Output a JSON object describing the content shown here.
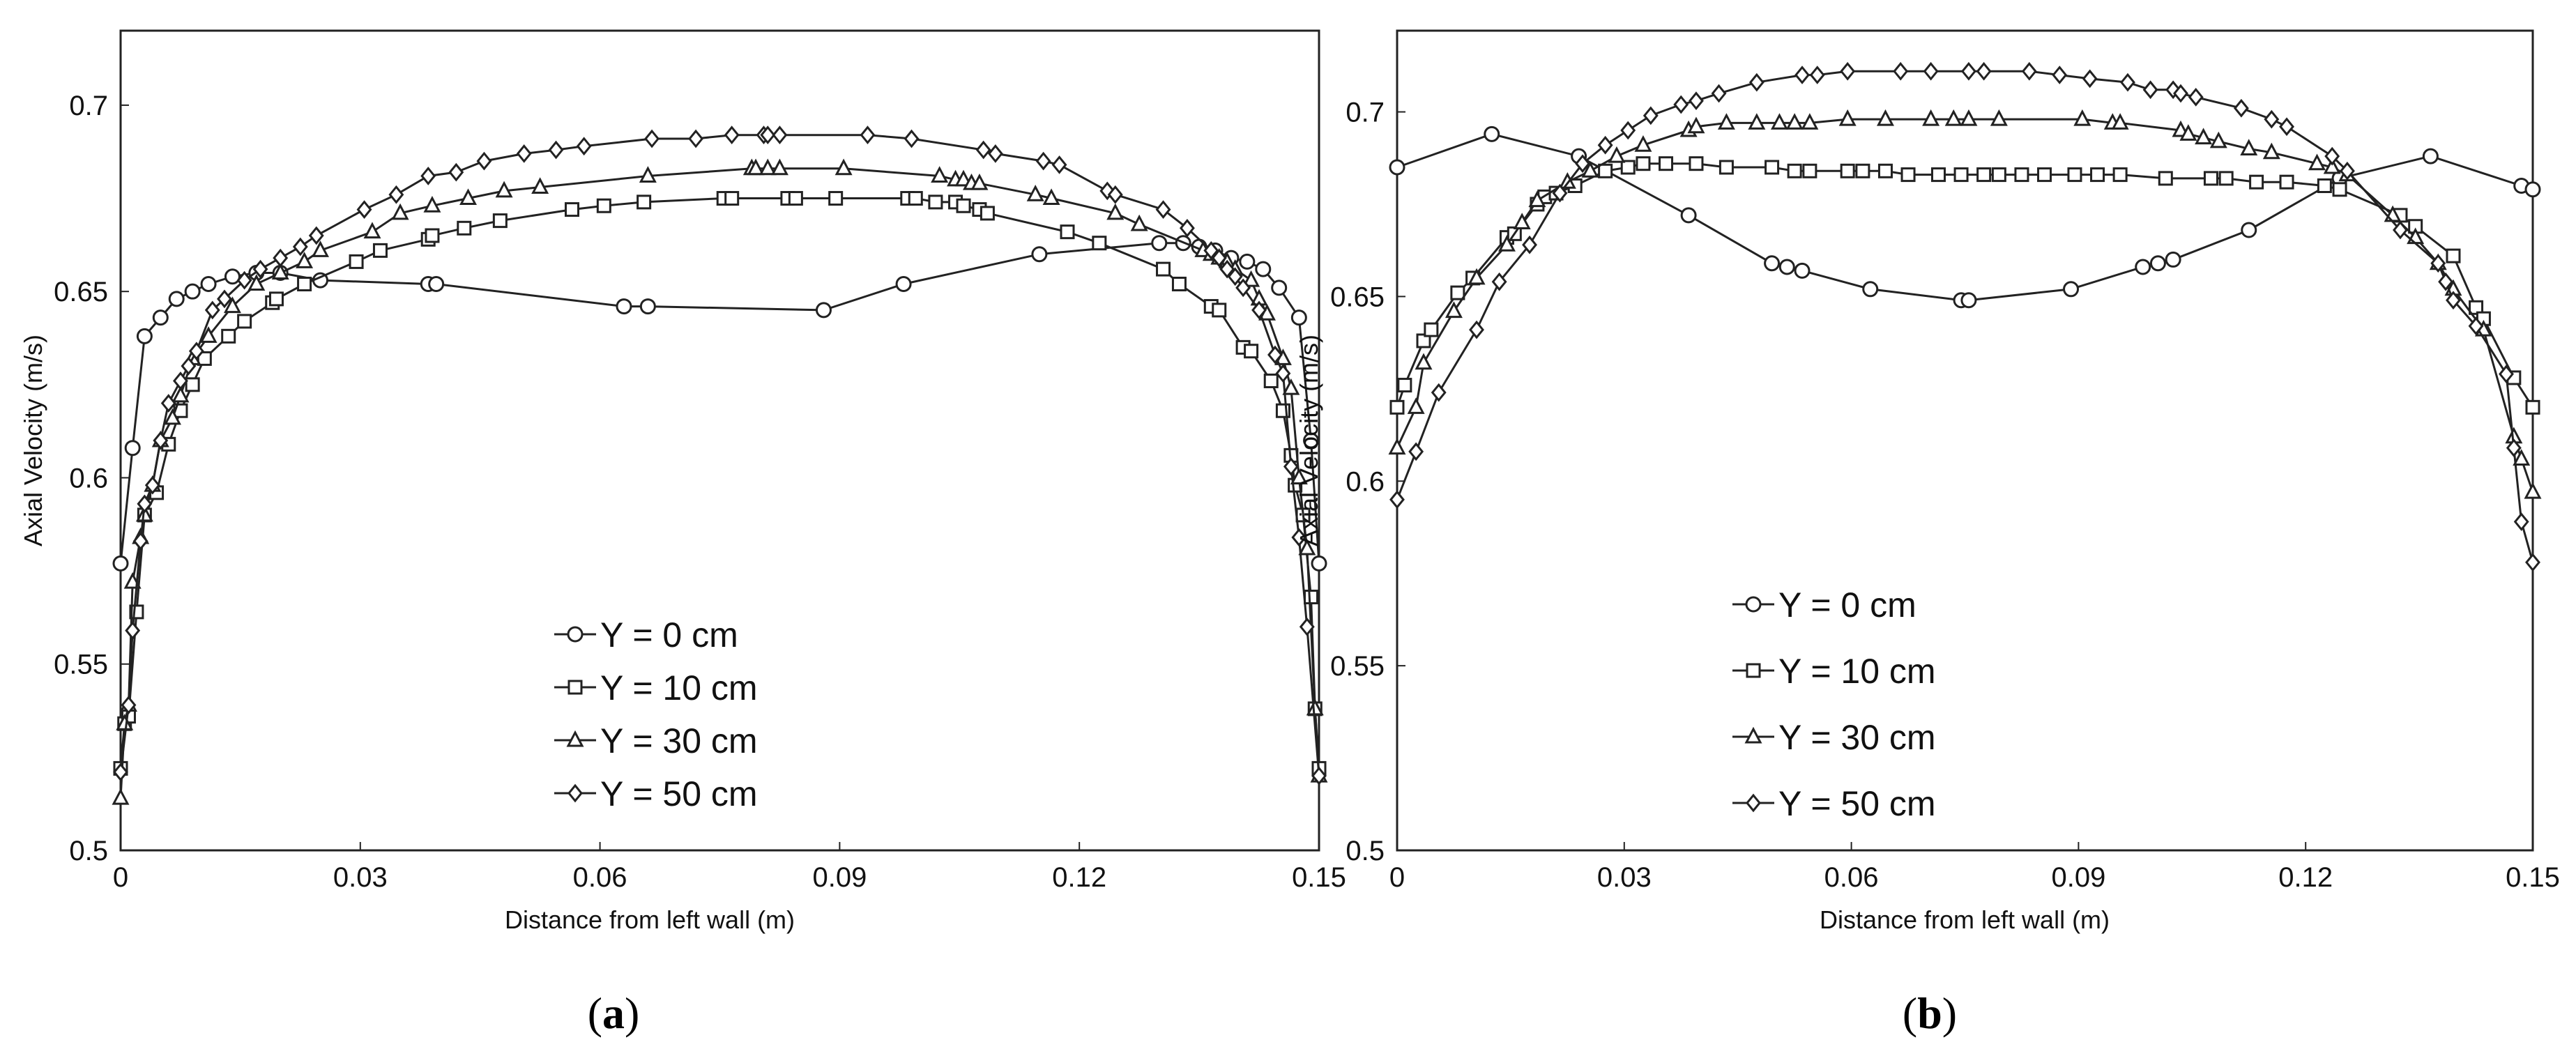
{
  "chart_data": [
    {
      "type": "line",
      "panel_label": "a",
      "xlabel": "Distance from left wall (m)",
      "ylabel": "Axial Velocity (m/s)",
      "xlim": [
        0,
        0.15
      ],
      "ylim": [
        0.5,
        0.72
      ],
      "xticks": [
        0,
        0.03,
        0.06,
        0.09,
        0.12,
        0.15
      ],
      "xtick_labels": [
        "0",
        "0.03",
        "0.06",
        "0.09",
        "0.12",
        "0.15"
      ],
      "yticks": [
        0.5,
        0.55,
        0.6,
        0.65,
        0.7
      ],
      "ytick_labels": [
        "0.5",
        "0.55",
        "0.6",
        "0.65",
        "0.7"
      ],
      "legend_position": "bottom-center",
      "series": [
        {
          "name": "Y = 0 cm",
          "marker": "circle",
          "x": [
            0,
            0.0015,
            0.003,
            0.005,
            0.007,
            0.009,
            0.011,
            0.014,
            0.017,
            0.02,
            0.025,
            0.0385,
            0.0395,
            0.063,
            0.066,
            0.088,
            0.098,
            0.115,
            0.13,
            0.133,
            0.135,
            0.137,
            0.139,
            0.141,
            0.143,
            0.145,
            0.1475,
            0.149,
            0.15
          ],
          "values": [
            0.577,
            0.608,
            0.638,
            0.643,
            0.648,
            0.65,
            0.652,
            0.654,
            0.655,
            0.655,
            0.653,
            0.652,
            0.652,
            0.646,
            0.646,
            0.645,
            0.652,
            0.66,
            0.663,
            0.663,
            0.662,
            0.661,
            0.659,
            0.658,
            0.656,
            0.651,
            0.643,
            0.61,
            0.577
          ]
        },
        {
          "name": "Y = 10 cm",
          "marker": "square",
          "x": [
            0,
            0.0005,
            0.001,
            0.002,
            0.003,
            0.0045,
            0.006,
            0.0075,
            0.009,
            0.0105,
            0.0135,
            0.0155,
            0.019,
            0.0195,
            0.023,
            0.0295,
            0.0325,
            0.0385,
            0.039,
            0.043,
            0.0475,
            0.0565,
            0.0605,
            0.0655,
            0.0755,
            0.0765,
            0.0835,
            0.0845,
            0.0895,
            0.0985,
            0.0995,
            0.102,
            0.1045,
            0.1055,
            0.1075,
            0.1085,
            0.1185,
            0.1225,
            0.1305,
            0.1325,
            0.1365,
            0.1375,
            0.1405,
            0.1415,
            0.144,
            0.1455,
            0.1465,
            0.147,
            0.148,
            0.149,
            0.1495,
            0.15
          ],
          "values": [
            0.522,
            0.534,
            0.536,
            0.564,
            0.59,
            0.596,
            0.609,
            0.618,
            0.625,
            0.632,
            0.638,
            0.642,
            0.647,
            0.648,
            0.652,
            0.658,
            0.661,
            0.664,
            0.665,
            0.667,
            0.669,
            0.672,
            0.673,
            0.674,
            0.675,
            0.675,
            0.675,
            0.675,
            0.675,
            0.675,
            0.675,
            0.674,
            0.674,
            0.673,
            0.672,
            0.671,
            0.666,
            0.663,
            0.656,
            0.652,
            0.646,
            0.645,
            0.635,
            0.634,
            0.626,
            0.618,
            0.606,
            0.598,
            0.59,
            0.568,
            0.538,
            0.522
          ]
        },
        {
          "name": "Y = 30 cm",
          "marker": "triangle",
          "x": [
            0,
            0.0005,
            0.001,
            0.0015,
            0.0025,
            0.003,
            0.004,
            0.005,
            0.0065,
            0.0075,
            0.009,
            0.011,
            0.014,
            0.017,
            0.02,
            0.023,
            0.025,
            0.0315,
            0.035,
            0.039,
            0.0435,
            0.048,
            0.0525,
            0.066,
            0.079,
            0.0795,
            0.081,
            0.0825,
            0.0905,
            0.1025,
            0.1045,
            0.1055,
            0.1065,
            0.1075,
            0.1145,
            0.1165,
            0.1245,
            0.1275,
            0.1355,
            0.1365,
            0.1375,
            0.1385,
            0.1395,
            0.1415,
            0.1425,
            0.1435,
            0.1455,
            0.1465,
            0.1475,
            0.1485,
            0.1495,
            0.15
          ],
          "values": [
            0.514,
            0.534,
            0.539,
            0.572,
            0.584,
            0.59,
            0.598,
            0.61,
            0.616,
            0.622,
            0.632,
            0.638,
            0.646,
            0.652,
            0.655,
            0.658,
            0.661,
            0.666,
            0.671,
            0.673,
            0.675,
            0.677,
            0.678,
            0.681,
            0.683,
            0.683,
            0.683,
            0.683,
            0.683,
            0.681,
            0.68,
            0.68,
            0.679,
            0.679,
            0.676,
            0.675,
            0.671,
            0.668,
            0.661,
            0.66,
            0.659,
            0.658,
            0.656,
            0.653,
            0.648,
            0.644,
            0.632,
            0.624,
            0.6,
            0.581,
            0.538,
            0.52
          ]
        },
        {
          "name": "Y = 50 cm",
          "marker": "diamond",
          "x": [
            0,
            0.001,
            0.0015,
            0.0025,
            0.003,
            0.004,
            0.005,
            0.006,
            0.0075,
            0.0085,
            0.0095,
            0.0115,
            0.013,
            0.0155,
            0.0175,
            0.02,
            0.0225,
            0.0245,
            0.0305,
            0.0345,
            0.0385,
            0.042,
            0.0455,
            0.0505,
            0.0545,
            0.058,
            0.0665,
            0.072,
            0.0765,
            0.0805,
            0.081,
            0.0825,
            0.0935,
            0.099,
            0.108,
            0.1095,
            0.1155,
            0.1175,
            0.1235,
            0.1245,
            0.1305,
            0.1335,
            0.1365,
            0.1375,
            0.1385,
            0.1395,
            0.1405,
            0.1425,
            0.1445,
            0.1455,
            0.1465,
            0.1475,
            0.1485,
            0.15
          ],
          "values": [
            0.521,
            0.539,
            0.559,
            0.583,
            0.593,
            0.598,
            0.61,
            0.62,
            0.626,
            0.63,
            0.634,
            0.645,
            0.648,
            0.653,
            0.656,
            0.659,
            0.662,
            0.665,
            0.672,
            0.676,
            0.681,
            0.682,
            0.685,
            0.687,
            0.688,
            0.689,
            0.691,
            0.691,
            0.692,
            0.692,
            0.692,
            0.692,
            0.692,
            0.691,
            0.688,
            0.687,
            0.685,
            0.684,
            0.677,
            0.676,
            0.672,
            0.667,
            0.661,
            0.659,
            0.656,
            0.654,
            0.651,
            0.645,
            0.633,
            0.628,
            0.603,
            0.584,
            0.56,
            0.52
          ]
        }
      ]
    },
    {
      "type": "line",
      "panel_label": "b",
      "xlabel": "Distance from left wall (m)",
      "ylabel": "Axial Velocity (m/s)",
      "xlim": [
        0,
        0.15
      ],
      "ylim": [
        0.5,
        0.722
      ],
      "xticks": [
        0,
        0.03,
        0.06,
        0.09,
        0.12,
        0.15
      ],
      "xtick_labels": [
        "0",
        "0.03",
        "0.06",
        "0.09",
        "0.12",
        "0.15"
      ],
      "yticks": [
        0.5,
        0.55,
        0.6,
        0.65,
        0.7
      ],
      "ytick_labels": [
        "0.5",
        "0.55",
        "0.6",
        "0.65",
        "0.7"
      ],
      "legend_position": "bottom-left",
      "series": [
        {
          "name": "Y = 0 cm",
          "marker": "circle",
          "x": [
            0,
            0.0125,
            0.024,
            0.0385,
            0.0495,
            0.0515,
            0.0535,
            0.0625,
            0.0745,
            0.0755,
            0.089,
            0.0985,
            0.1005,
            0.1025,
            0.1125,
            0.1245,
            0.1365,
            0.1485,
            0.15
          ],
          "values": [
            0.685,
            0.694,
            0.688,
            0.672,
            0.659,
            0.658,
            0.657,
            0.652,
            0.649,
            0.649,
            0.652,
            0.658,
            0.659,
            0.66,
            0.668,
            0.682,
            0.688,
            0.68,
            0.679
          ]
        },
        {
          "name": "Y = 10 cm",
          "marker": "square",
          "x": [
            0,
            0.001,
            0.0035,
            0.0045,
            0.008,
            0.01,
            0.0145,
            0.0155,
            0.0185,
            0.0195,
            0.021,
            0.0235,
            0.0275,
            0.0305,
            0.0325,
            0.0355,
            0.0395,
            0.0435,
            0.0495,
            0.0525,
            0.0545,
            0.0595,
            0.0615,
            0.0645,
            0.0675,
            0.0715,
            0.0745,
            0.0775,
            0.0795,
            0.0825,
            0.0855,
            0.0895,
            0.0925,
            0.0955,
            0.1015,
            0.1075,
            0.1095,
            0.1135,
            0.1175,
            0.1225,
            0.1245,
            0.1325,
            0.1345,
            0.1395,
            0.1425,
            0.1435,
            0.1475,
            0.15
          ],
          "values": [
            0.62,
            0.626,
            0.638,
            0.641,
            0.651,
            0.655,
            0.666,
            0.667,
            0.675,
            0.677,
            0.678,
            0.68,
            0.684,
            0.685,
            0.686,
            0.686,
            0.686,
            0.685,
            0.685,
            0.684,
            0.684,
            0.684,
            0.684,
            0.684,
            0.683,
            0.683,
            0.683,
            0.683,
            0.683,
            0.683,
            0.683,
            0.683,
            0.683,
            0.683,
            0.682,
            0.682,
            0.682,
            0.681,
            0.681,
            0.68,
            0.679,
            0.672,
            0.669,
            0.661,
            0.647,
            0.644,
            0.628,
            0.62
          ]
        },
        {
          "name": "Y = 30 cm",
          "marker": "triangle",
          "x": [
            0,
            0.0025,
            0.0035,
            0.0075,
            0.0105,
            0.0145,
            0.0165,
            0.0185,
            0.0225,
            0.0255,
            0.029,
            0.0325,
            0.0385,
            0.0395,
            0.0435,
            0.0475,
            0.0505,
            0.0525,
            0.0545,
            0.0595,
            0.0645,
            0.0705,
            0.0735,
            0.0755,
            0.0795,
            0.0905,
            0.0945,
            0.0955,
            0.1035,
            0.1045,
            0.1065,
            0.1085,
            0.1125,
            0.1155,
            0.1215,
            0.1235,
            0.1255,
            0.1315,
            0.1345,
            0.1375,
            0.1395,
            0.1435,
            0.1475,
            0.1485,
            0.15
          ],
          "values": [
            0.609,
            0.62,
            0.632,
            0.646,
            0.655,
            0.664,
            0.67,
            0.676,
            0.681,
            0.684,
            0.688,
            0.691,
            0.695,
            0.696,
            0.697,
            0.697,
            0.697,
            0.697,
            0.697,
            0.698,
            0.698,
            0.698,
            0.698,
            0.698,
            0.698,
            0.698,
            0.697,
            0.697,
            0.695,
            0.694,
            0.693,
            0.692,
            0.69,
            0.689,
            0.686,
            0.685,
            0.683,
            0.672,
            0.666,
            0.659,
            0.652,
            0.641,
            0.612,
            0.606,
            0.597
          ]
        },
        {
          "name": "Y = 50 cm",
          "marker": "diamond",
          "x": [
            0,
            0.0025,
            0.0055,
            0.0105,
            0.0135,
            0.0175,
            0.0215,
            0.0245,
            0.0275,
            0.0305,
            0.0335,
            0.0375,
            0.0395,
            0.0425,
            0.0475,
            0.0535,
            0.0555,
            0.0595,
            0.0665,
            0.0705,
            0.0755,
            0.0775,
            0.0835,
            0.0875,
            0.0915,
            0.0965,
            0.0995,
            0.1025,
            0.1035,
            0.1055,
            0.1115,
            0.1155,
            0.1175,
            0.1235,
            0.1255,
            0.1325,
            0.1375,
            0.1385,
            0.1395,
            0.1425,
            0.1465,
            0.1475,
            0.1485,
            0.15
          ],
          "values": [
            0.595,
            0.608,
            0.624,
            0.641,
            0.654,
            0.664,
            0.678,
            0.686,
            0.691,
            0.695,
            0.699,
            0.702,
            0.703,
            0.705,
            0.708,
            0.71,
            0.71,
            0.711,
            0.711,
            0.711,
            0.711,
            0.711,
            0.711,
            0.71,
            0.709,
            0.708,
            0.706,
            0.706,
            0.705,
            0.704,
            0.701,
            0.698,
            0.696,
            0.688,
            0.684,
            0.668,
            0.659,
            0.654,
            0.649,
            0.642,
            0.629,
            0.609,
            0.589,
            0.578
          ]
        }
      ]
    }
  ]
}
